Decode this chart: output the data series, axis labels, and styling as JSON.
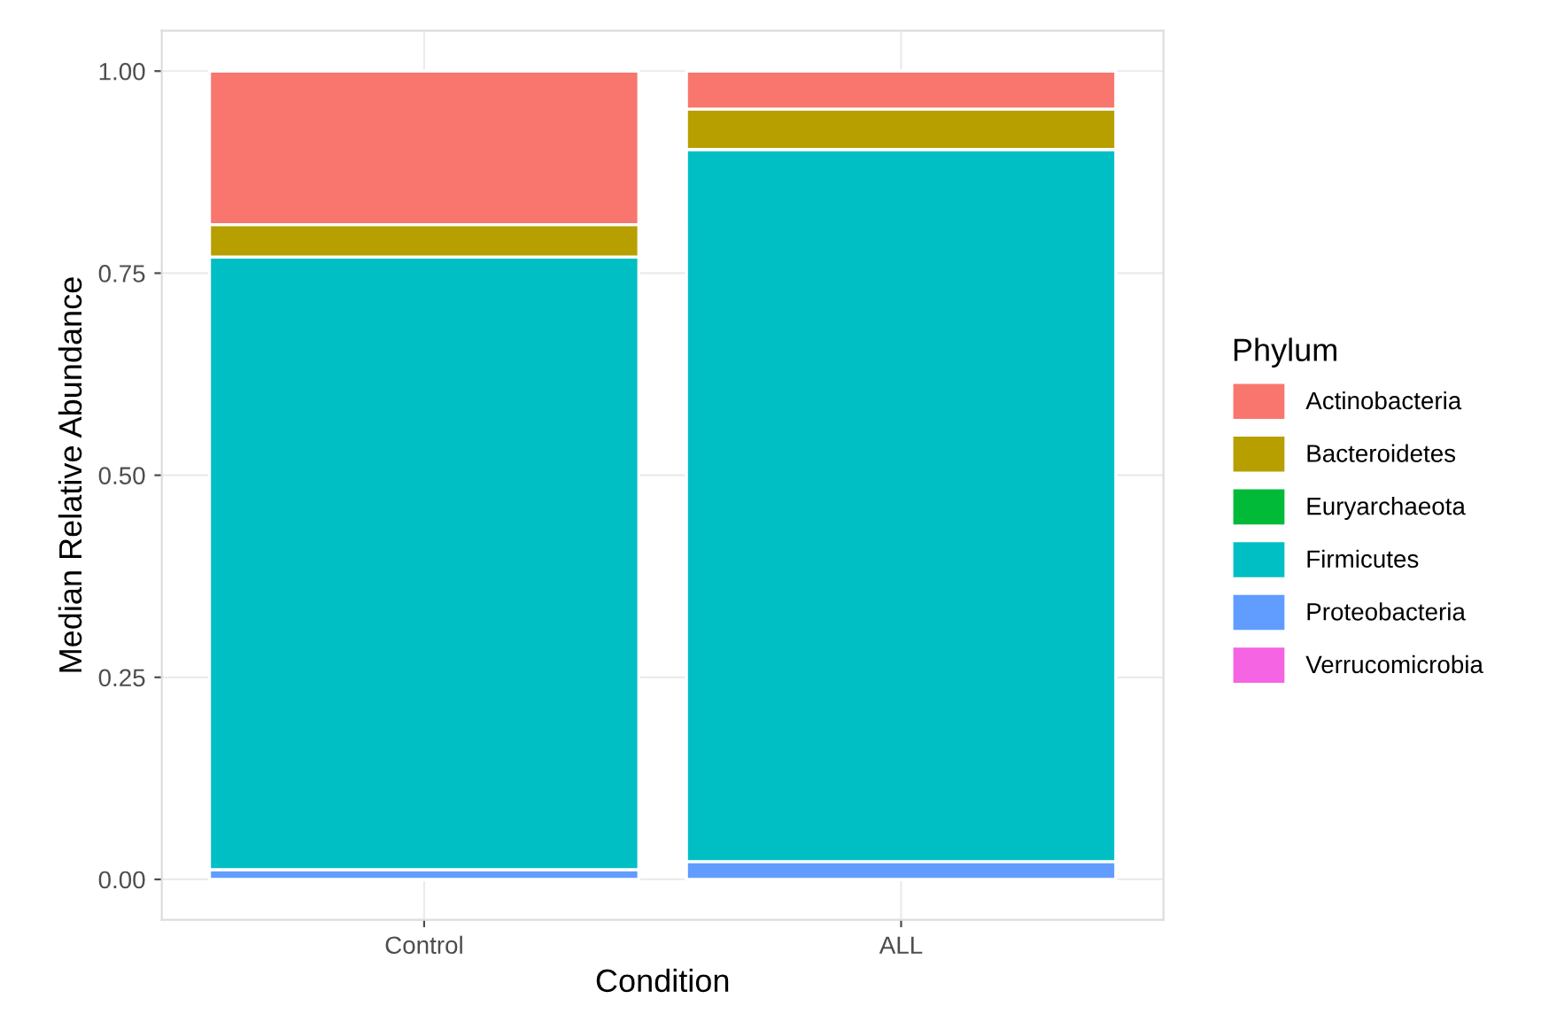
{
  "chart_data": {
    "type": "bar",
    "stacked": true,
    "xlabel": "Condition",
    "ylabel": "Median Relative Abundance",
    "legend_title": "Phylum",
    "legend": "right",
    "categories": [
      "Control",
      "ALL"
    ],
    "series": [
      {
        "name": "Verrucomicrobia",
        "color": "#f564e3",
        "values": [
          0.0,
          0.0
        ]
      },
      {
        "name": "Proteobacteria",
        "color": "#619cff",
        "values": [
          0.012,
          0.022
        ]
      },
      {
        "name": "Firmicutes",
        "color": "#00bfc4",
        "values": [
          0.758,
          0.881
        ]
      },
      {
        "name": "Euryarchaeota",
        "color": "#00ba38",
        "values": [
          0.0,
          0.0
        ]
      },
      {
        "name": "Bacteroidetes",
        "color": "#b79f00",
        "values": [
          0.04,
          0.05
        ]
      },
      {
        "name": "Actinobacteria",
        "color": "#f8766d",
        "values": [
          0.19,
          0.047
        ]
      }
    ],
    "ylim": [
      -0.05,
      1.05
    ],
    "yticks": [
      {
        "value": 0,
        "label": "0.00"
      },
      {
        "value": 0.25,
        "label": "0.25"
      },
      {
        "value": 0.5,
        "label": "0.50"
      },
      {
        "value": 0.75,
        "label": "0.75"
      },
      {
        "value": 1,
        "label": "1.00"
      }
    ],
    "grid": true
  }
}
